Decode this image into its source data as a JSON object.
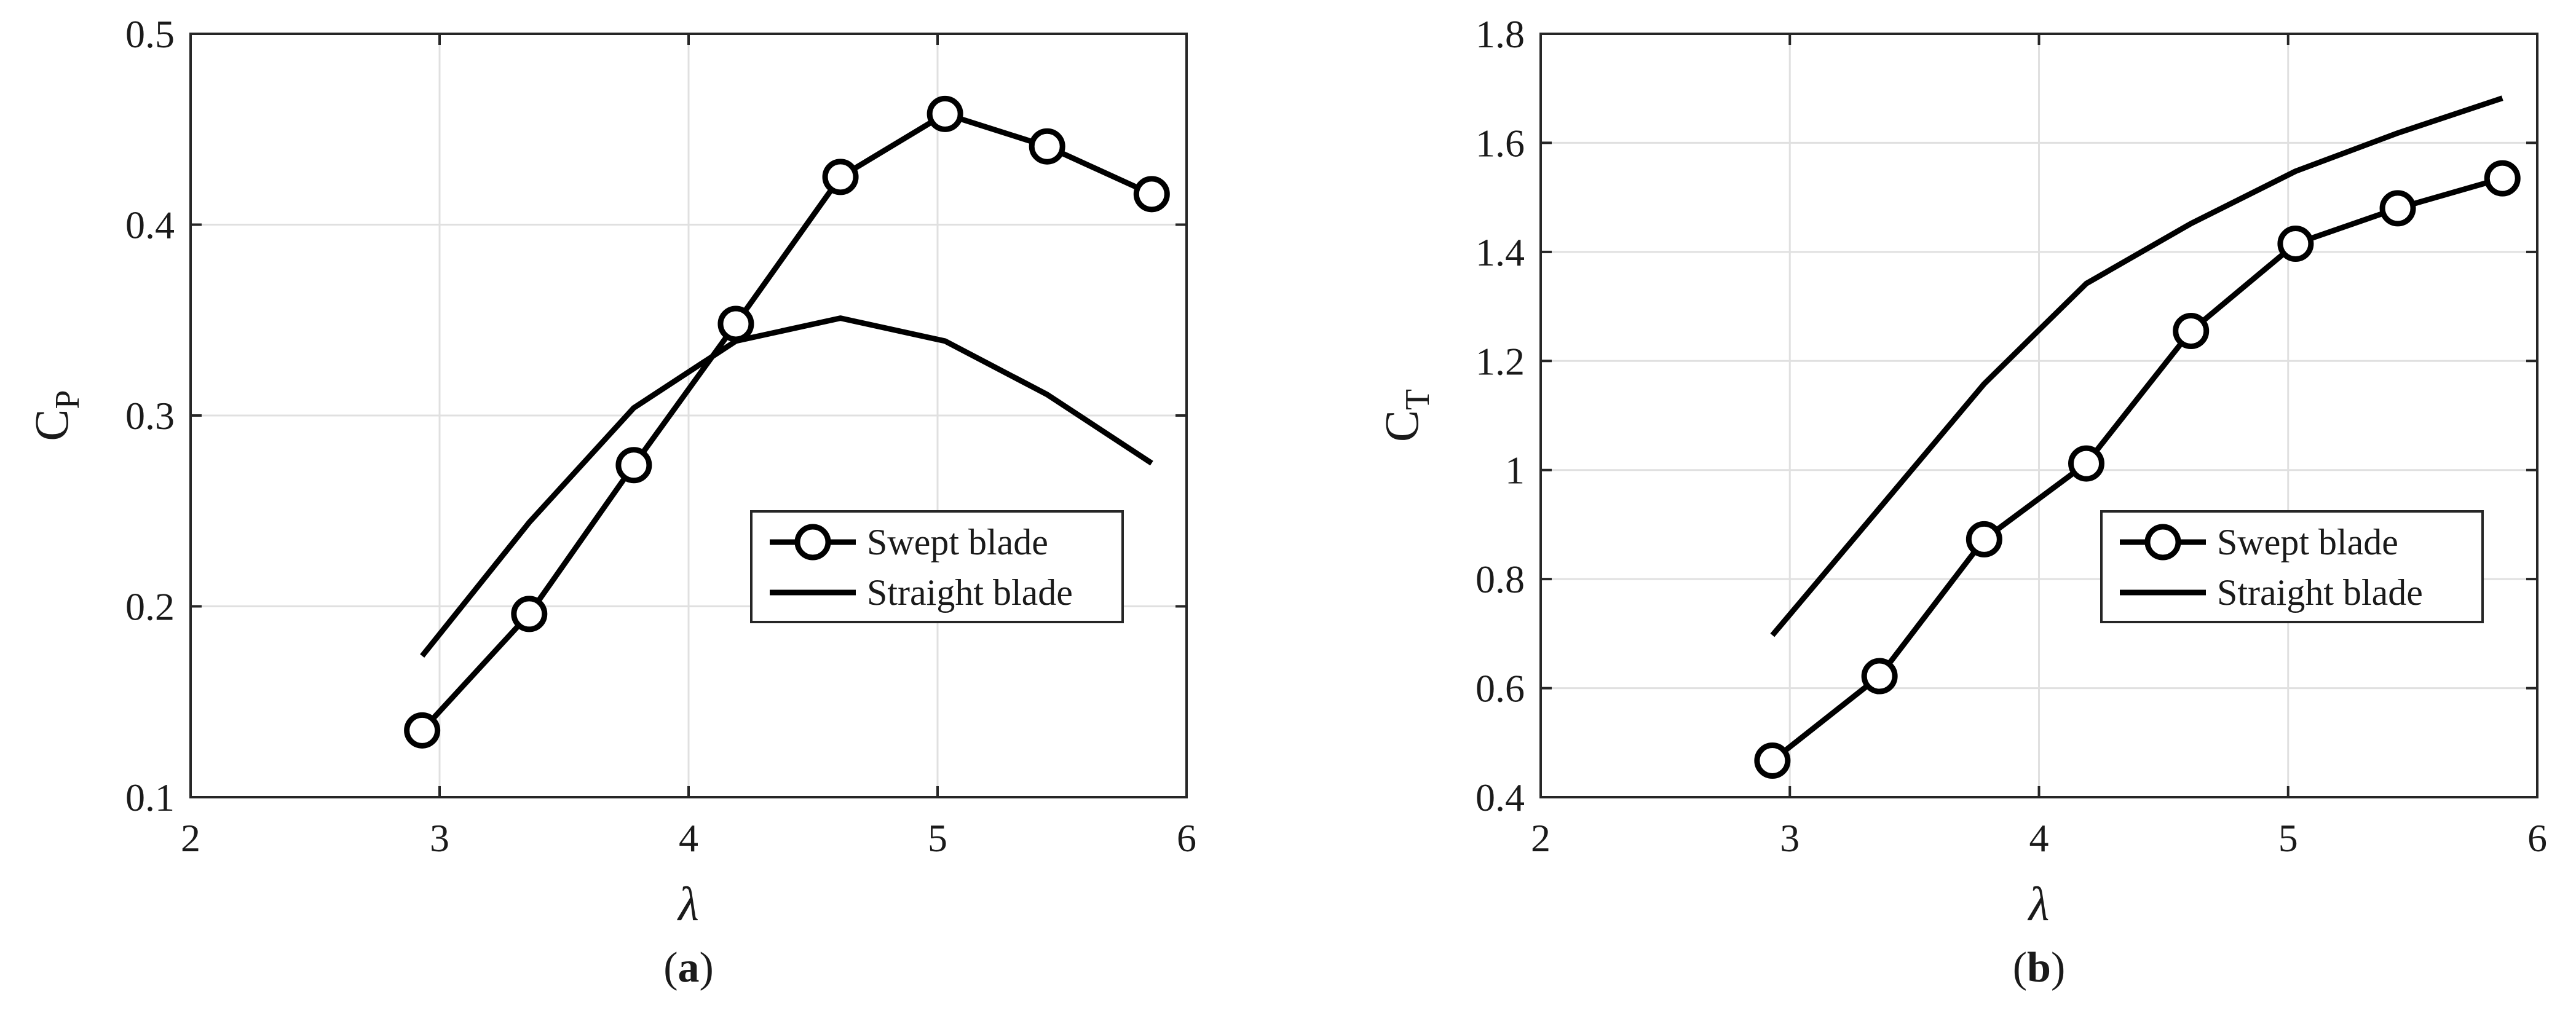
{
  "chart_data": [
    {
      "type": "line",
      "panel_label": {
        "pre": "(",
        "bold": "a",
        "post": ")"
      },
      "title": "",
      "xlabel": "λ",
      "ylabel": {
        "main": "C",
        "sub": "P"
      },
      "xlim": [
        2,
        6
      ],
      "ylim": [
        0.1,
        0.5
      ],
      "xticks": [
        2,
        3,
        4,
        5,
        6
      ],
      "xtick_labels": [
        "2",
        "3",
        "4",
        "5",
        "6"
      ],
      "yticks": [
        0.1,
        0.2,
        0.3,
        0.4,
        0.5
      ],
      "ytick_labels": [
        "0.1",
        "0.2",
        "0.3",
        "0.4",
        "0.5"
      ],
      "grid": true,
      "legend_position": "lower-right",
      "series": [
        {
          "name": "Swept blade",
          "marker": "circle",
          "color": "#000000",
          "x": [
            2.93,
            3.36,
            3.78,
            4.19,
            4.61,
            5.03,
            5.44,
            5.86
          ],
          "y": [
            0.135,
            0.196,
            0.274,
            0.348,
            0.425,
            0.458,
            0.441,
            0.416
          ]
        },
        {
          "name": "Straight blade",
          "marker": "none",
          "color": "#000000",
          "x": [
            2.93,
            3.36,
            3.78,
            4.19,
            4.61,
            5.03,
            5.44,
            5.86
          ],
          "y": [
            0.174,
            0.244,
            0.304,
            0.339,
            0.351,
            0.339,
            0.311,
            0.275
          ]
        }
      ]
    },
    {
      "type": "line",
      "panel_label": {
        "pre": "(",
        "bold": "b",
        "post": ")"
      },
      "title": "",
      "xlabel": "λ",
      "ylabel": {
        "main": "C",
        "sub": "T"
      },
      "xlim": [
        2,
        6
      ],
      "ylim": [
        0.4,
        1.8
      ],
      "xticks": [
        2,
        3,
        4,
        5,
        6
      ],
      "xtick_labels": [
        "2",
        "3",
        "4",
        "5",
        "6"
      ],
      "yticks": [
        0.4,
        0.6,
        0.8,
        1.0,
        1.2,
        1.4,
        1.6,
        1.8
      ],
      "ytick_labels": [
        "0.4",
        "0.6",
        "0.8",
        "1",
        "1.2",
        "1.4",
        "1.6",
        "1.8"
      ],
      "grid": true,
      "legend_position": "lower-right",
      "series": [
        {
          "name": "Swept blade",
          "marker": "circle",
          "color": "#000000",
          "x": [
            2.93,
            3.36,
            3.78,
            4.19,
            4.61,
            5.03,
            5.44,
            5.86
          ],
          "y": [
            0.467,
            0.622,
            0.873,
            1.012,
            1.255,
            1.415,
            1.48,
            1.535
          ]
        },
        {
          "name": "Straight blade",
          "marker": "none",
          "color": "#000000",
          "x": [
            2.93,
            3.36,
            3.78,
            4.19,
            4.61,
            5.03,
            5.44,
            5.86
          ],
          "y": [
            0.697,
            0.93,
            1.158,
            1.342,
            1.452,
            1.548,
            1.618,
            1.682
          ]
        }
      ]
    }
  ]
}
